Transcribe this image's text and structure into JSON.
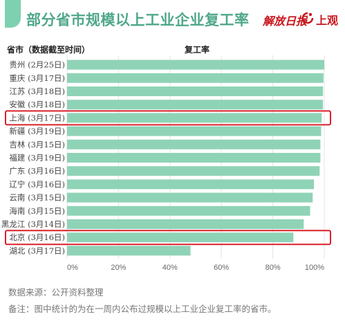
{
  "header": {
    "title": "部分省市规模以上工业企业复工率",
    "brand_1": "解放日报",
    "brand_2": "上观",
    "accent_color": "#7ed0b1",
    "title_color": "#4fa78a",
    "brand_color": "#c8161d"
  },
  "columns": {
    "category_header": "省市（数据截至时间）",
    "value_header": "复工率"
  },
  "chart_data": {
    "type": "bar",
    "orientation": "horizontal",
    "categories": [
      "贵州 (2月25日)",
      "重庆 (3月17日)",
      "江苏 (3月18日)",
      "安徽 (3月18日)",
      "上海 (3月17日)",
      "新疆 (3月19日)",
      "吉林 (3月15日)",
      "福建 (3月19日)",
      "广东 (3月16日)",
      "辽宁 (3月16日)",
      "云南 (3月15日)",
      "海南 (3月15日)",
      "黑龙江 (3月14日)",
      "北京 (3月16日)",
      "湖北 (3月17日)"
    ],
    "values": [
      100,
      99.7,
      99.5,
      99.5,
      99.0,
      98.8,
      98.5,
      98.5,
      98.2,
      96.0,
      95.5,
      94.5,
      92.0,
      88.0,
      48.0
    ],
    "value_unit": "%",
    "xlim": [
      0,
      100
    ],
    "x_ticks": [
      "0%",
      "20%",
      "40%",
      "60%",
      "80%",
      "100%"
    ],
    "bar_color": "#8fd3b6",
    "grid": true,
    "highlighted": [
      "上海 (3月17日)",
      "北京 (3月16日)"
    ],
    "highlight_color": "#d9202a"
  },
  "notes": {
    "source": "数据来源：公开资料整理",
    "remark": "备注：图中统计的为在一周内公布过规模以上工业企业复工率的省市。"
  }
}
